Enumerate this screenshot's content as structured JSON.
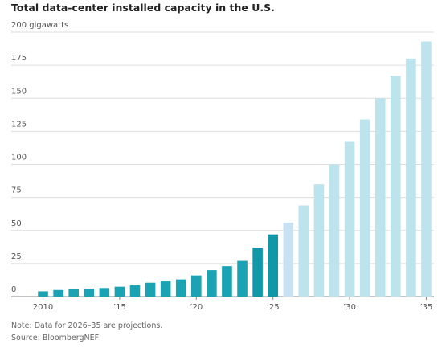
{
  "chart_data": {
    "type": "bar",
    "title": "Total data-center installed capacity in the U.S.",
    "categories": [
      "2010",
      null,
      null,
      null,
      null,
      "’15",
      null,
      null,
      null,
      null,
      "’20",
      null,
      null,
      null,
      null,
      "’25",
      null,
      null,
      null,
      null,
      "’30",
      null,
      null,
      null,
      null,
      "’35"
    ],
    "values": [
      4,
      5,
      5.5,
      6,
      6.5,
      7.5,
      8.5,
      10.5,
      11.5,
      13,
      16,
      20,
      23,
      27,
      37,
      47,
      56,
      69,
      85,
      100,
      117,
      134,
      150,
      167,
      180,
      193
    ],
    "colors": [
      "#1ba3b3",
      "#1ba3b3",
      "#1ba3b3",
      "#1ba3b3",
      "#1ba3b3",
      "#1ba3b3",
      "#1ba3b3",
      "#1ba3b3",
      "#1ba3b3",
      "#1ba3b3",
      "#1ba3b3",
      "#1ba3b3",
      "#1ba3b3",
      "#1ba3b3",
      "#1198a8",
      "#1198a8",
      "#c9e2f3",
      "#bde3ec",
      "#bde3ec",
      "#bde3ec",
      "#bde3ec",
      "#bde3ec",
      "#bde3ec",
      "#bde3ec",
      "#bde3ec",
      "#bde3ec"
    ],
    "ylim": [
      0,
      200
    ],
    "yticks": [
      0,
      25,
      50,
      75,
      100,
      125,
      150,
      175,
      {
        "value": 200,
        "label": "200 gigawatts"
      }
    ],
    "grid": true,
    "note": "Note: Data for 2026–35 are projections.",
    "source": "Source: BloombergNEF"
  }
}
